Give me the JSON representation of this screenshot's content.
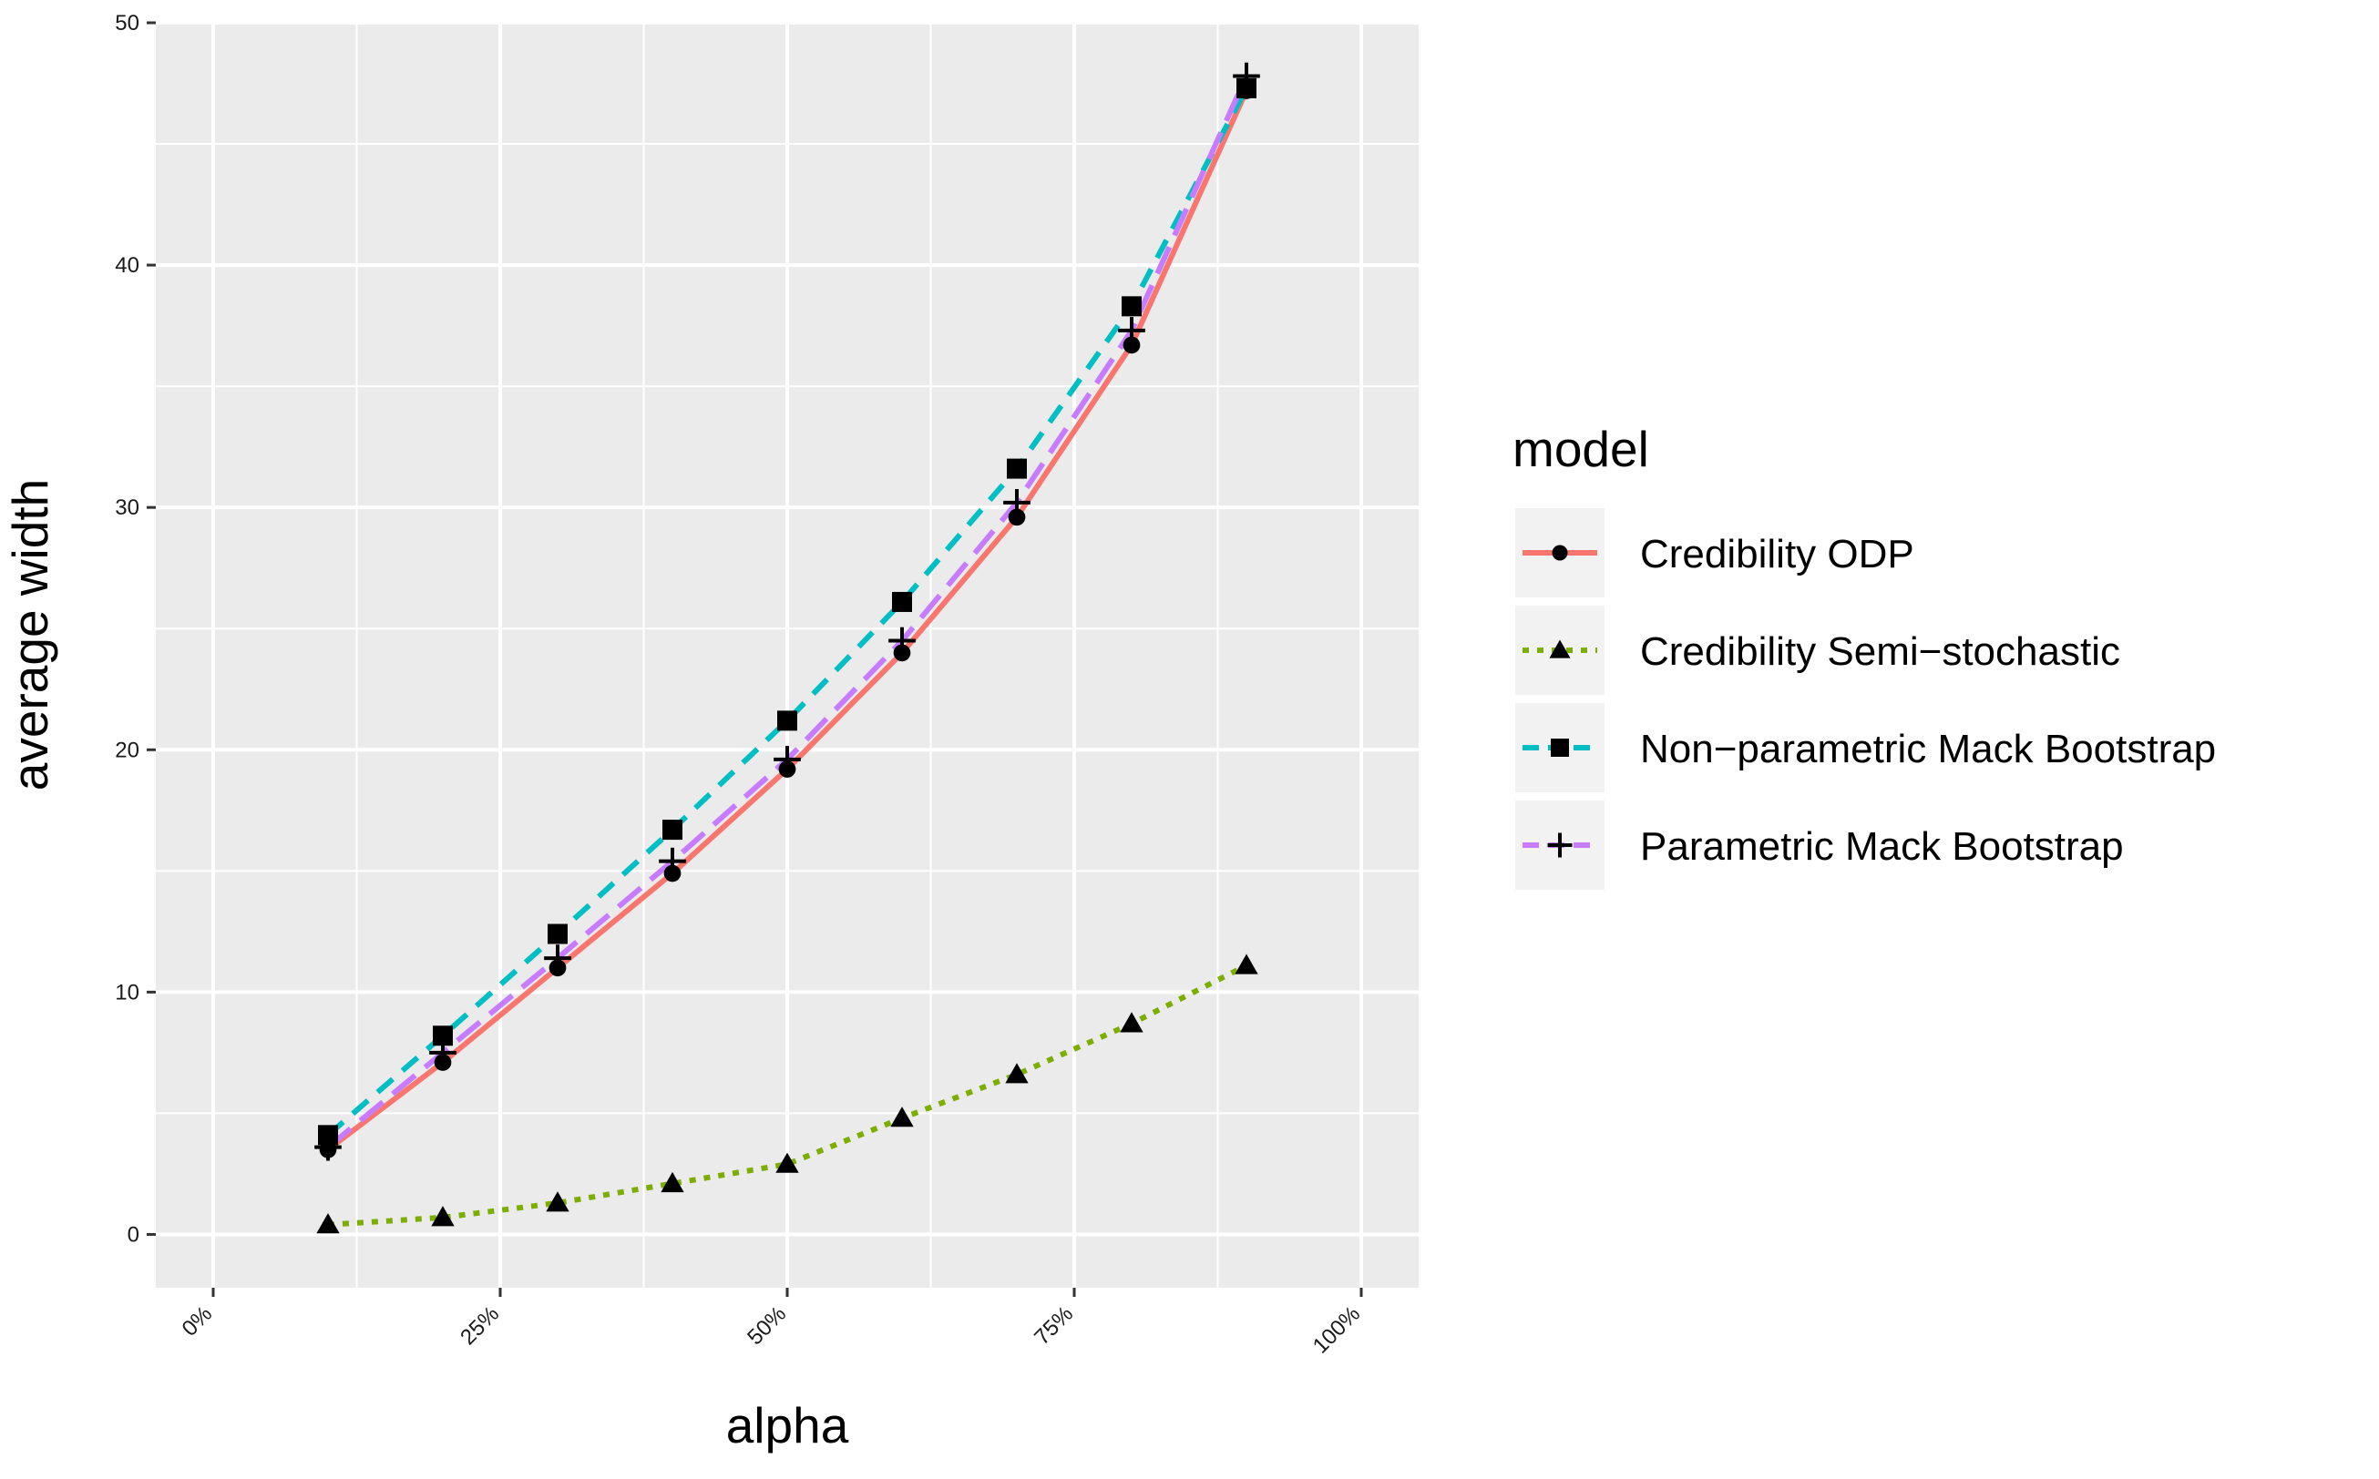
{
  "chart_data": {
    "type": "line",
    "title": "",
    "xlabel": "alpha",
    "ylabel": "average width",
    "xlim": [
      -0.05,
      1.05
    ],
    "ylim": [
      -2.2,
      50
    ],
    "x_ticks": [
      {
        "value": 0,
        "label": "0%"
      },
      {
        "value": 0.25,
        "label": "25%"
      },
      {
        "value": 0.5,
        "label": "50%"
      },
      {
        "value": 0.75,
        "label": "75%"
      },
      {
        "value": 1,
        "label": "100%"
      }
    ],
    "y_ticks": [
      {
        "value": 0,
        "label": "0"
      },
      {
        "value": 10,
        "label": "10"
      },
      {
        "value": 20,
        "label": "20"
      },
      {
        "value": 30,
        "label": "30"
      },
      {
        "value": 40,
        "label": "40"
      },
      {
        "value": 50,
        "label": "50"
      }
    ],
    "grid": true,
    "panel_background": "#ebebeb",
    "legend": {
      "title": "model",
      "placement": "right"
    },
    "x": [
      0.1,
      0.2,
      0.3,
      0.4,
      0.5,
      0.6,
      0.7,
      0.8,
      0.9
    ],
    "series": [
      {
        "name": "Credibility ODP",
        "color": "#f8766d",
        "linestyle": "solid",
        "marker": "circle",
        "values": [
          3.5,
          7.1,
          11.0,
          14.9,
          19.2,
          24.0,
          29.6,
          36.7,
          47.2
        ]
      },
      {
        "name": "Credibility Semi−stochastic",
        "color": "#7cae00",
        "linestyle": "dotted",
        "marker": "triangle",
        "values": [
          0.4,
          0.7,
          1.3,
          2.1,
          2.9,
          4.8,
          6.6,
          8.7,
          11.1
        ]
      },
      {
        "name": "Non−parametric Mack Bootstrap",
        "color": "#00bfc4",
        "linestyle": "dashed",
        "marker": "square",
        "values": [
          4.1,
          8.2,
          12.4,
          16.7,
          21.2,
          26.1,
          31.6,
          38.3,
          47.3
        ]
      },
      {
        "name": "Parametric Mack Bootstrap",
        "color": "#c77cff",
        "linestyle": "longdash",
        "marker": "plus",
        "values": [
          3.6,
          7.5,
          11.4,
          15.4,
          19.6,
          24.5,
          30.2,
          37.3,
          47.8
        ]
      }
    ]
  }
}
